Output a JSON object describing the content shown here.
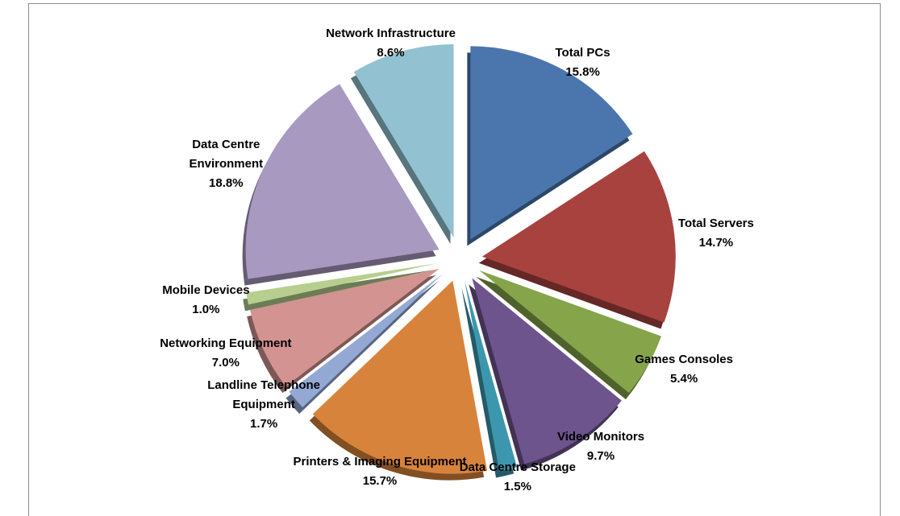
{
  "chart_data": {
    "type": "pie",
    "categories": [
      "Total PCs",
      "Total Servers",
      "Games Consoles",
      "Video Monitors",
      "Data Centre Storage",
      "Printers & Imaging Equipment",
      "Landline Telephone Equipment",
      "Networking Equipment",
      "Mobile Devices",
      "Data Centre Environment",
      "Network Infrastructure"
    ],
    "values": [
      15.8,
      14.7,
      5.4,
      9.7,
      1.5,
      15.7,
      1.7,
      7.0,
      1.0,
      18.8,
      8.6
    ],
    "value_labels": [
      "15.8%",
      "14.7%",
      "5.4%",
      "9.7%",
      "1.5%",
      "15.7%",
      "1.7%",
      "7.0%",
      "1.0%",
      "18.8%",
      "8.6%"
    ],
    "colors": [
      "#4a76ad",
      "#a8423f",
      "#86a44a",
      "#6e548d",
      "#3c97ae",
      "#d8833b",
      "#93a9d4",
      "#d29391",
      "#b6cf8e",
      "#a899c1",
      "#92c2d1"
    ]
  }
}
